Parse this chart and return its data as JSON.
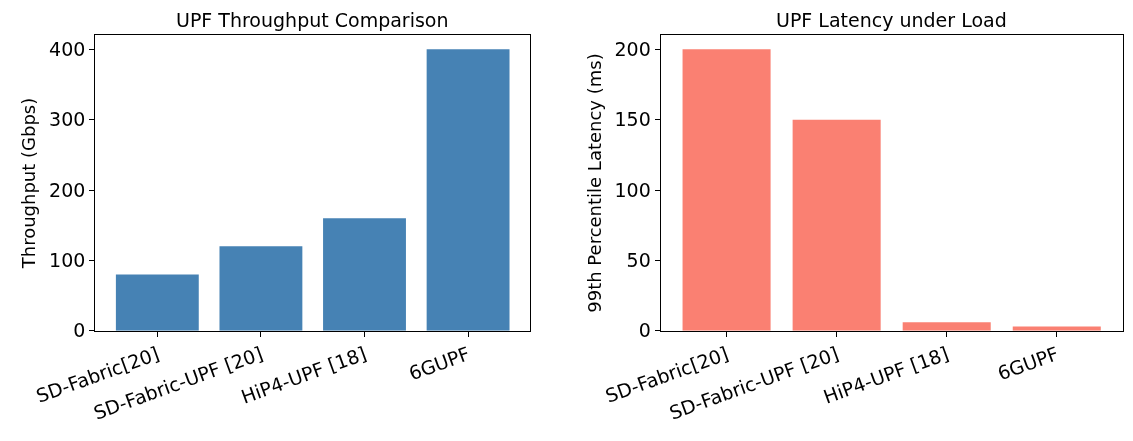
{
  "chart_data": [
    {
      "type": "bar",
      "title": "UPF Throughput Comparison",
      "ylabel": "Throughput (Gbps)",
      "categories": [
        "SD-Fabric[20]",
        "SD-Fabric-UPF [20]",
        "HiP4-UPF [18]",
        "6GUPF"
      ],
      "values": [
        80,
        120,
        160,
        400
      ],
      "color": "#4682b4",
      "ylim": [
        0,
        420
      ],
      "yticks": [
        0,
        100,
        200,
        300,
        400
      ],
      "grid": false,
      "legend": false
    },
    {
      "type": "bar",
      "title": "UPF Latency under Load",
      "ylabel": "99th Percentile Latency (ms)",
      "categories": [
        "SD-Fabric[20]",
        "SD-Fabric-UPF [20]",
        "HiP4-UPF [18]",
        "6GUPF"
      ],
      "values": [
        200,
        150,
        6,
        3
      ],
      "color": "#fa8072",
      "ylim": [
        0,
        210
      ],
      "yticks": [
        0,
        50,
        100,
        150,
        200
      ],
      "grid": false,
      "legend": false
    }
  ]
}
